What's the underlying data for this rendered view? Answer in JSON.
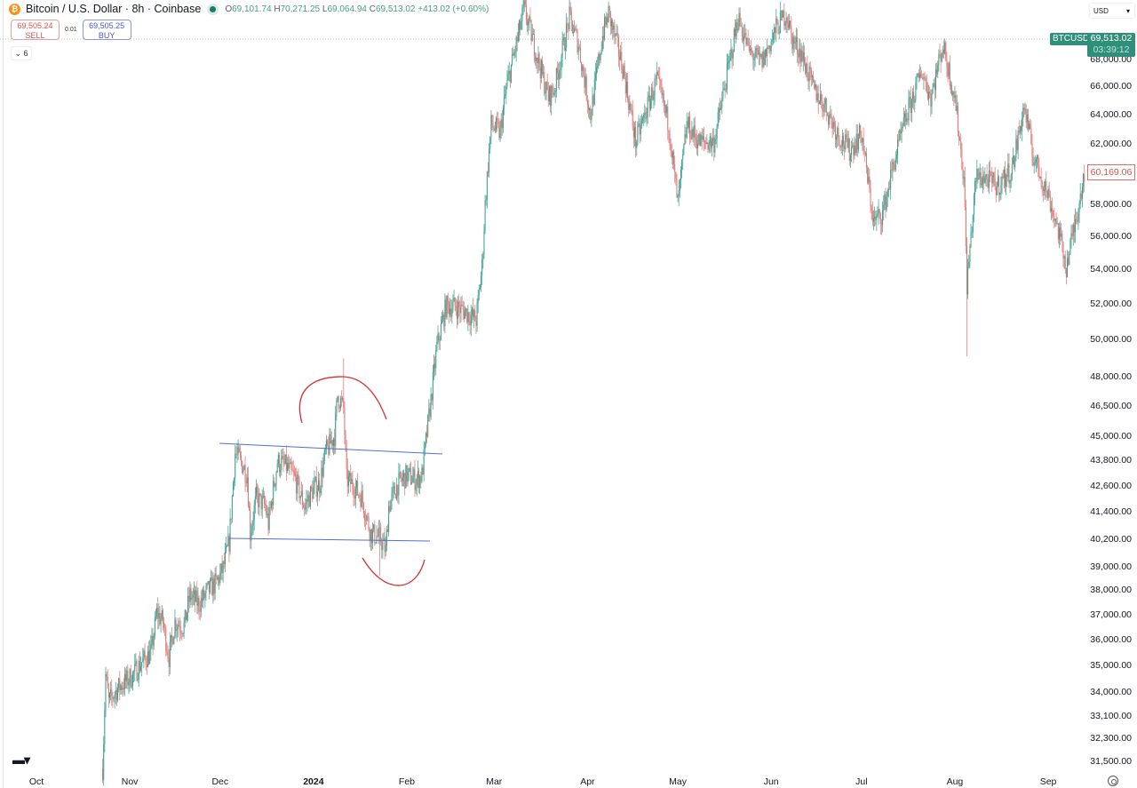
{
  "header": {
    "coin_icon": "bitcoin-icon",
    "title": "Bitcoin / U.S. Dollar · 8h · Coinbase",
    "market_status_icon": "live-dot-icon",
    "open_label": "O",
    "open": "69,101.74",
    "high_label": "H",
    "high": "70,271.25",
    "low_label": "L",
    "low": "69,064.94",
    "close_label": "C",
    "close": "69,513.02",
    "change": "+413.02 (+0.60%)"
  },
  "trade": {
    "sell_price": "69,505.24",
    "sell_label": "SELL",
    "spread": "0.01",
    "buy_price": "69,505.25",
    "buy_label": "BUY"
  },
  "indicators_toggle": {
    "icon": "chevron-down-icon",
    "count": "6"
  },
  "currency_select": {
    "value": "USD",
    "icon": "chevron-down-icon"
  },
  "symbol_label": "BTCUSD",
  "last_price": "69,513.02",
  "countdown": "03:39:12",
  "marked_price": "60,169.06",
  "colors": {
    "up": "#2f9a86",
    "down": "#e06c6c",
    "trendline": "#4f6fd6",
    "drawing": "#d32f2f",
    "label_green": "#2f8f7a"
  },
  "logo": "TV",
  "settings_icon": "gear-icon",
  "chart_data": {
    "type": "candlestick",
    "title": "Bitcoin / U.S. Dollar · 8h · Coinbase",
    "interval": "8h",
    "y_scale": "log",
    "ylim": [
      31300,
      72500
    ],
    "grid": false,
    "y_ticks": [
      {
        "value": 68000,
        "label": "68,000.00"
      },
      {
        "value": 66000,
        "label": "66,000.00"
      },
      {
        "value": 64000,
        "label": "64,000.00"
      },
      {
        "value": 62000,
        "label": "62,000.00"
      },
      {
        "value": 58000,
        "label": "58,000.00"
      },
      {
        "value": 56000,
        "label": "56,000.00"
      },
      {
        "value": 54000,
        "label": "54,000.00"
      },
      {
        "value": 52000,
        "label": "52,000.00"
      },
      {
        "value": 50000,
        "label": "50,000.00"
      },
      {
        "value": 48000,
        "label": "48,000.00"
      },
      {
        "value": 46500,
        "label": "46,500.00"
      },
      {
        "value": 45000,
        "label": "45,000.00"
      },
      {
        "value": 43800,
        "label": "43,800.00"
      },
      {
        "value": 42600,
        "label": "42,600.00"
      },
      {
        "value": 41400,
        "label": "41,400.00"
      },
      {
        "value": 40200,
        "label": "40,200.00"
      },
      {
        "value": 39000,
        "label": "39,000.00"
      },
      {
        "value": 38000,
        "label": "38,000.00"
      },
      {
        "value": 37000,
        "label": "37,000.00"
      },
      {
        "value": 36000,
        "label": "36,000.00"
      },
      {
        "value": 35000,
        "label": "35,000.00"
      },
      {
        "value": 34000,
        "label": "34,000.00"
      },
      {
        "value": 33100,
        "label": "33,100.00"
      },
      {
        "value": 32300,
        "label": "32,300.00"
      },
      {
        "value": 31500,
        "label": "31,500.00"
      }
    ],
    "x_ticks": [
      {
        "date": "2023-10-01",
        "label": "Oct"
      },
      {
        "date": "2023-11-01",
        "label": "Nov"
      },
      {
        "date": "2023-12-01",
        "label": "Dec"
      },
      {
        "date": "2024-01-01",
        "label": "2024",
        "bold": true
      },
      {
        "date": "2024-02-01",
        "label": "Feb"
      },
      {
        "date": "2024-03-01",
        "label": "Mar"
      },
      {
        "date": "2024-04-01",
        "label": "Apr"
      },
      {
        "date": "2024-05-01",
        "label": "May"
      },
      {
        "date": "2024-06-01",
        "label": "Jun"
      },
      {
        "date": "2024-07-01",
        "label": "Jul"
      },
      {
        "date": "2024-08-01",
        "label": "Aug"
      },
      {
        "date": "2024-09-01",
        "label": "Sep"
      }
    ],
    "xlim": [
      "2023-10-01",
      "2024-09-26"
    ],
    "price_path": [
      [
        "2023-10-23",
        31250
      ],
      [
        "2023-10-24",
        34620
      ],
      [
        "2023-10-25",
        33620
      ],
      [
        "2023-10-28",
        34120
      ],
      [
        "2023-11-02",
        34620
      ],
      [
        "2023-11-05",
        35130
      ],
      [
        "2023-11-08",
        35470
      ],
      [
        "2023-11-10",
        37060
      ],
      [
        "2023-11-12",
        36700
      ],
      [
        "2023-11-14",
        35300
      ],
      [
        "2023-11-16",
        36700
      ],
      [
        "2023-11-19",
        36520
      ],
      [
        "2023-11-21",
        37790
      ],
      [
        "2023-11-24",
        37420
      ],
      [
        "2023-11-27",
        37980
      ],
      [
        "2023-11-30",
        38350
      ],
      [
        "2023-12-02",
        38910
      ],
      [
        "2023-12-04",
        40060
      ],
      [
        "2023-12-06",
        44160
      ],
      [
        "2023-12-08",
        43730
      ],
      [
        "2023-12-10",
        43100
      ],
      [
        "2023-12-11",
        40460
      ],
      [
        "2023-12-13",
        42060
      ],
      [
        "2023-12-16",
        41660
      ],
      [
        "2023-12-17",
        40850
      ],
      [
        "2023-12-20",
        43730
      ],
      [
        "2023-12-23",
        43520
      ],
      [
        "2023-12-26",
        42890
      ],
      [
        "2023-12-29",
        41660
      ],
      [
        "2024-01-01",
        42470
      ],
      [
        "2024-01-03",
        42680
      ],
      [
        "2024-01-05",
        44160
      ],
      [
        "2024-01-08",
        45030
      ],
      [
        "2024-01-09",
        47050
      ],
      [
        "2024-01-11",
        46370
      ],
      [
        "2024-01-12",
        42890
      ],
      [
        "2024-01-14",
        42680
      ],
      [
        "2024-01-17",
        42060
      ],
      [
        "2024-01-20",
        40460
      ],
      [
        "2024-01-23",
        40260
      ],
      [
        "2024-01-25",
        39680
      ],
      [
        "2024-01-26",
        41660
      ],
      [
        "2024-01-29",
        42680
      ],
      [
        "2024-02-01",
        43100
      ],
      [
        "2024-02-04",
        42890
      ],
      [
        "2024-02-06",
        43100
      ],
      [
        "2024-02-09",
        46820
      ],
      [
        "2024-02-11",
        49630
      ],
      [
        "2024-02-14",
        51860
      ],
      [
        "2024-02-17",
        51860
      ],
      [
        "2024-02-20",
        51610
      ],
      [
        "2024-02-24",
        51110
      ],
      [
        "2024-02-26",
        54180
      ],
      [
        "2024-02-27",
        58000
      ],
      [
        "2024-02-29",
        63310
      ],
      [
        "2024-03-03",
        62700
      ],
      [
        "2024-03-05",
        65830
      ],
      [
        "2024-03-09",
        69790
      ],
      [
        "2024-03-11",
        71860
      ],
      [
        "2024-03-15",
        68450
      ],
      [
        "2024-03-19",
        65200
      ],
      [
        "2024-03-21",
        65830
      ],
      [
        "2024-03-26",
        71160
      ],
      [
        "2024-03-29",
        69120
      ],
      [
        "2024-04-02",
        63940
      ],
      [
        "2024-04-06",
        69790
      ],
      [
        "2024-04-08",
        71510
      ],
      [
        "2024-04-13",
        67130
      ],
      [
        "2024-04-17",
        62100
      ],
      [
        "2024-04-20",
        63940
      ],
      [
        "2024-04-24",
        66470
      ],
      [
        "2024-04-28",
        63310
      ],
      [
        "2024-05-01",
        58000
      ],
      [
        "2024-05-04",
        63310
      ],
      [
        "2024-05-08",
        62100
      ],
      [
        "2024-05-13",
        62100
      ],
      [
        "2024-05-17",
        66470
      ],
      [
        "2024-05-21",
        71160
      ],
      [
        "2024-05-25",
        68450
      ],
      [
        "2024-05-29",
        67790
      ],
      [
        "2024-06-03",
        70480
      ],
      [
        "2024-06-06",
        71510
      ],
      [
        "2024-06-08",
        69470
      ],
      [
        "2024-06-11",
        68450
      ],
      [
        "2024-06-15",
        65830
      ],
      [
        "2024-06-19",
        64560
      ],
      [
        "2024-06-23",
        62700
      ],
      [
        "2024-06-27",
        61490
      ],
      [
        "2024-07-01",
        62700
      ],
      [
        "2024-07-05",
        56880
      ],
      [
        "2024-07-08",
        57440
      ],
      [
        "2024-07-12",
        60900
      ],
      [
        "2024-07-16",
        63940
      ],
      [
        "2024-07-21",
        67130
      ],
      [
        "2024-07-24",
        65200
      ],
      [
        "2024-07-28",
        69120
      ],
      [
        "2024-08-01",
        65200
      ],
      [
        "2024-08-04",
        59720
      ],
      [
        "2024-08-05",
        53130
      ],
      [
        "2024-08-08",
        59720
      ],
      [
        "2024-08-11",
        59720
      ],
      [
        "2024-08-15",
        59140
      ],
      [
        "2024-08-20",
        60310
      ],
      [
        "2024-08-24",
        64560
      ],
      [
        "2024-08-27",
        61200
      ],
      [
        "2024-09-01",
        58570
      ],
      [
        "2024-09-04",
        56610
      ],
      [
        "2024-09-07",
        54180
      ],
      [
        "2024-09-10",
        56880
      ],
      [
        "2024-09-13",
        60169
      ]
    ],
    "notable_extremes": [
      {
        "date": "2024-01-11",
        "high": 49000
      },
      {
        "date": "2024-01-23",
        "low": 38600
      },
      {
        "date": "2024-08-05",
        "low": 49100
      }
    ],
    "current_price": 69513.02
  }
}
